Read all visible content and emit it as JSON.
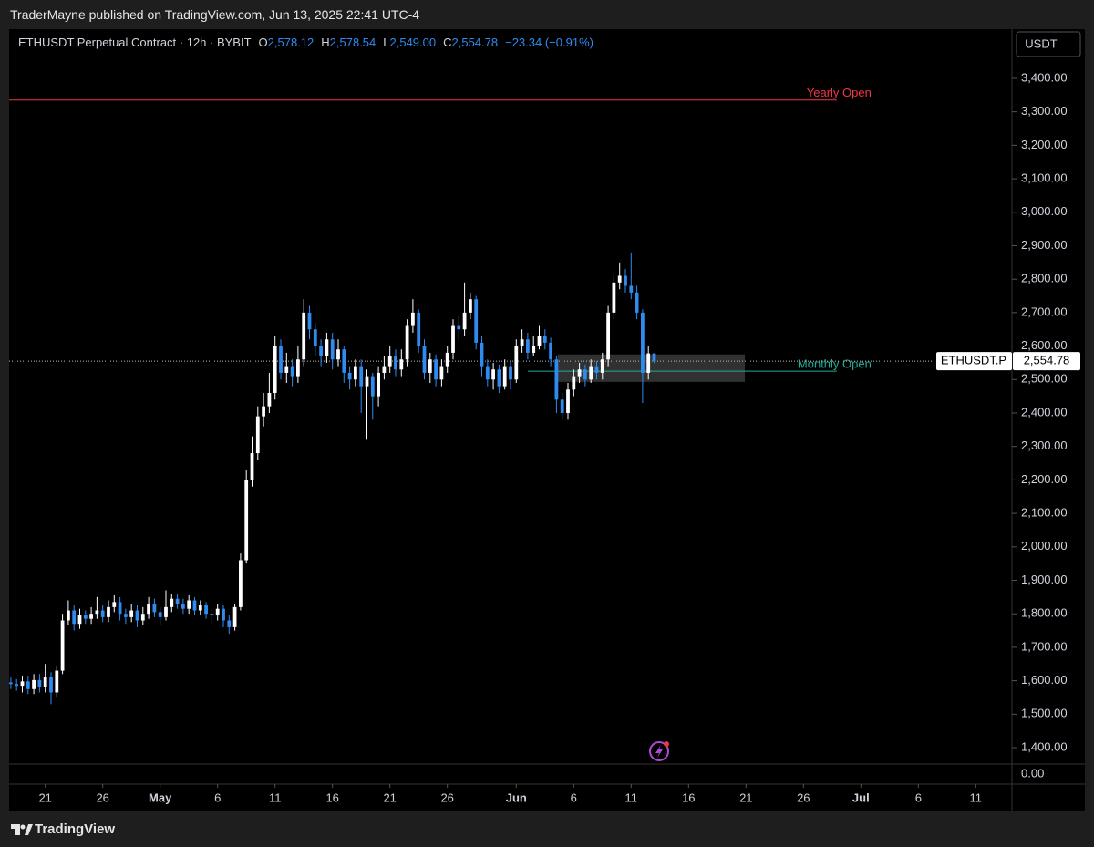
{
  "header": "TraderMayne published on TradingView.com, Jun 13, 2025 22:41 UTC-4",
  "footer": "TradingView",
  "chart_data": {
    "type": "candlestick",
    "title": "ETHUSDT Perpetual Contract · 12h · BYBIT",
    "legend_values": [
      {
        "key": "O",
        "label": "2,578.12"
      },
      {
        "key": "H",
        "label": "2,578.54"
      },
      {
        "key": "L",
        "label": "2,549.00"
      },
      {
        "key": "C",
        "label": "2,554.78"
      }
    ],
    "change": "−23.34 (−0.91%)",
    "y_axis_unit": "USDT",
    "lower_pane_label": "0.00",
    "up_color": "#ffffff",
    "down_color": "#2f8bf0",
    "open": [
      1595,
      1590,
      1585,
      1598,
      1575,
      1602,
      1580,
      1610,
      1565,
      1630,
      1780,
      1810,
      1770,
      1795,
      1785,
      1800,
      1810,
      1790,
      1820,
      1835,
      1800,
      1790,
      1810,
      1780,
      1800,
      1830,
      1805,
      1790,
      1820,
      1845,
      1830,
      1815,
      1840,
      1810,
      1825,
      1800,
      1795,
      1815,
      1780,
      1760,
      1820,
      1960,
      2200,
      2280,
      2390,
      2420,
      2460,
      2600,
      2520,
      2540,
      2510,
      2560,
      2700,
      2650,
      2600,
      2570,
      2620,
      2560,
      2590,
      2520,
      2500,
      2540,
      2480,
      2510,
      2450,
      2520,
      2540,
      2570,
      2530,
      2560,
      2660,
      2700,
      2600,
      2520,
      2560,
      2500,
      2540,
      2580,
      2660,
      2650,
      2700,
      2740,
      2610,
      2540,
      2500,
      2530,
      2480,
      2540,
      2500,
      2600,
      2620,
      2580,
      2600,
      2630,
      2610,
      2560,
      2440,
      2400,
      2470,
      2510,
      2530,
      2500,
      2540,
      2520,
      2560,
      2700,
      2790,
      2810,
      2780,
      2760,
      2700,
      2520,
      2578.12
    ],
    "high": [
      1610,
      1605,
      1615,
      1615,
      1620,
      1620,
      1650,
      1625,
      1645,
      1800,
      1840,
      1825,
      1815,
      1810,
      1820,
      1850,
      1825,
      1840,
      1855,
      1850,
      1815,
      1830,
      1825,
      1820,
      1850,
      1845,
      1820,
      1870,
      1860,
      1860,
      1845,
      1855,
      1850,
      1840,
      1835,
      1815,
      1830,
      1825,
      1795,
      1830,
      1980,
      2230,
      2330,
      2420,
      2460,
      2520,
      2630,
      2620,
      2580,
      2560,
      2600,
      2740,
      2720,
      2670,
      2620,
      2640,
      2640,
      2620,
      2600,
      2540,
      2560,
      2560,
      2530,
      2520,
      2540,
      2570,
      2600,
      2590,
      2590,
      2680,
      2740,
      2710,
      2620,
      2580,
      2575,
      2560,
      2600,
      2680,
      2690,
      2790,
      2760,
      2750,
      2630,
      2560,
      2550,
      2545,
      2560,
      2555,
      2620,
      2650,
      2640,
      2630,
      2660,
      2650,
      2625,
      2570,
      2460,
      2490,
      2530,
      2550,
      2545,
      2560,
      2555,
      2580,
      2720,
      2810,
      2850,
      2830,
      2880,
      2780,
      2710,
      2600,
      2578.54
    ],
    "low": [
      1575,
      1570,
      1565,
      1560,
      1560,
      1565,
      1565,
      1530,
      1550,
      1620,
      1765,
      1750,
      1755,
      1770,
      1770,
      1785,
      1775,
      1775,
      1805,
      1780,
      1770,
      1775,
      1760,
      1765,
      1785,
      1790,
      1765,
      1780,
      1805,
      1815,
      1800,
      1800,
      1795,
      1795,
      1785,
      1770,
      1780,
      1760,
      1740,
      1750,
      1810,
      1950,
      2180,
      2260,
      2360,
      2400,
      2440,
      2500,
      2490,
      2480,
      2490,
      2540,
      2620,
      2570,
      2540,
      2550,
      2530,
      2540,
      2490,
      2470,
      2480,
      2400,
      2320,
      2380,
      2420,
      2500,
      2520,
      2510,
      2510,
      2540,
      2640,
      2580,
      2500,
      2490,
      2480,
      2480,
      2520,
      2560,
      2620,
      2630,
      2680,
      2590,
      2510,
      2480,
      2470,
      2460,
      2470,
      2470,
      2490,
      2580,
      2560,
      2570,
      2590,
      2590,
      2540,
      2400,
      2380,
      2380,
      2450,
      2490,
      2480,
      2490,
      2500,
      2500,
      2540,
      2680,
      2770,
      2760,
      2740,
      2680,
      2430,
      2500,
      2549
    ],
    "close": [
      1590,
      1585,
      1598,
      1575,
      1602,
      1580,
      1610,
      1565,
      1630,
      1780,
      1810,
      1770,
      1795,
      1785,
      1800,
      1810,
      1790,
      1820,
      1835,
      1800,
      1790,
      1810,
      1780,
      1800,
      1830,
      1805,
      1790,
      1820,
      1845,
      1830,
      1815,
      1840,
      1810,
      1825,
      1800,
      1795,
      1815,
      1780,
      1760,
      1820,
      1960,
      2200,
      2280,
      2390,
      2420,
      2460,
      2600,
      2520,
      2540,
      2510,
      2560,
      2700,
      2650,
      2600,
      2570,
      2620,
      2560,
      2590,
      2520,
      2500,
      2540,
      2480,
      2510,
      2450,
      2520,
      2540,
      2570,
      2530,
      2560,
      2660,
      2700,
      2600,
      2520,
      2560,
      2500,
      2540,
      2580,
      2660,
      2650,
      2700,
      2740,
      2610,
      2540,
      2500,
      2530,
      2480,
      2540,
      2500,
      2600,
      2620,
      2580,
      2600,
      2630,
      2610,
      2560,
      2440,
      2400,
      2470,
      2510,
      2530,
      2500,
      2540,
      2520,
      2560,
      2700,
      2790,
      2810,
      2780,
      2760,
      2700,
      2520,
      2578.12,
      2554.78
    ],
    "ylim": [
      1351,
      3547
    ],
    "yticks": [
      {
        "value": 1400,
        "label": "1,400.00"
      },
      {
        "value": 1500,
        "label": "1,500.00"
      },
      {
        "value": 1600,
        "label": "1,600.00"
      },
      {
        "value": 1700,
        "label": "1,700.00"
      },
      {
        "value": 1800,
        "label": "1,800.00"
      },
      {
        "value": 1900,
        "label": "1,900.00"
      },
      {
        "value": 2000,
        "label": "2,000.00"
      },
      {
        "value": 2100,
        "label": "2,100.00"
      },
      {
        "value": 2200,
        "label": "2,200.00"
      },
      {
        "value": 2300,
        "label": "2,300.00"
      },
      {
        "value": 2400,
        "label": "2,400.00"
      },
      {
        "value": 2500,
        "label": "2,500.00"
      },
      {
        "value": 2600,
        "label": "2,600.00"
      },
      {
        "value": 2700,
        "label": "2,700.00"
      },
      {
        "value": 2800,
        "label": "2,800.00"
      },
      {
        "value": 2900,
        "label": "2,900.00"
      },
      {
        "value": 3000,
        "label": "3,000.00"
      },
      {
        "value": 3100,
        "label": "3,100.00"
      },
      {
        "value": 3200,
        "label": "3,200.00"
      },
      {
        "value": 3300,
        "label": "3,300.00"
      },
      {
        "value": 3400,
        "label": "3,400.00"
      }
    ],
    "xlim": [
      -0.3,
      174.3
    ],
    "xticks": [
      {
        "value": 6,
        "label": "21"
      },
      {
        "value": 16,
        "label": "26"
      },
      {
        "value": 26,
        "label": "May"
      },
      {
        "value": 36,
        "label": "6"
      },
      {
        "value": 46,
        "label": "11"
      },
      {
        "value": 56,
        "label": "16"
      },
      {
        "value": 66,
        "label": "21"
      },
      {
        "value": 76,
        "label": "26"
      },
      {
        "value": 88,
        "label": "Jun"
      },
      {
        "value": 98,
        "label": "6"
      },
      {
        "value": 108,
        "label": "11"
      },
      {
        "value": 118,
        "label": "16"
      },
      {
        "value": 128,
        "label": "21"
      },
      {
        "value": 138,
        "label": "26"
      },
      {
        "value": 148,
        "label": "Jul"
      },
      {
        "value": 158,
        "label": "6"
      },
      {
        "value": 168,
        "label": "11"
      }
    ],
    "levels": [
      {
        "name": "Yearly Open",
        "value": 3335,
        "color": "#f23645",
        "x": [
          -0.3,
          143.8
        ]
      },
      {
        "name": "Monthly Open",
        "value": 2525,
        "color": "#22ab94",
        "x": [
          90,
          143.8
        ]
      }
    ],
    "zone": {
      "x": [
        95.2,
        127.8
      ],
      "y": [
        2493,
        2575
      ],
      "color": "#5a5a5a"
    },
    "price_tag": {
      "symbol": "ETHUSDT.P",
      "label": "2,554.78"
    }
  }
}
